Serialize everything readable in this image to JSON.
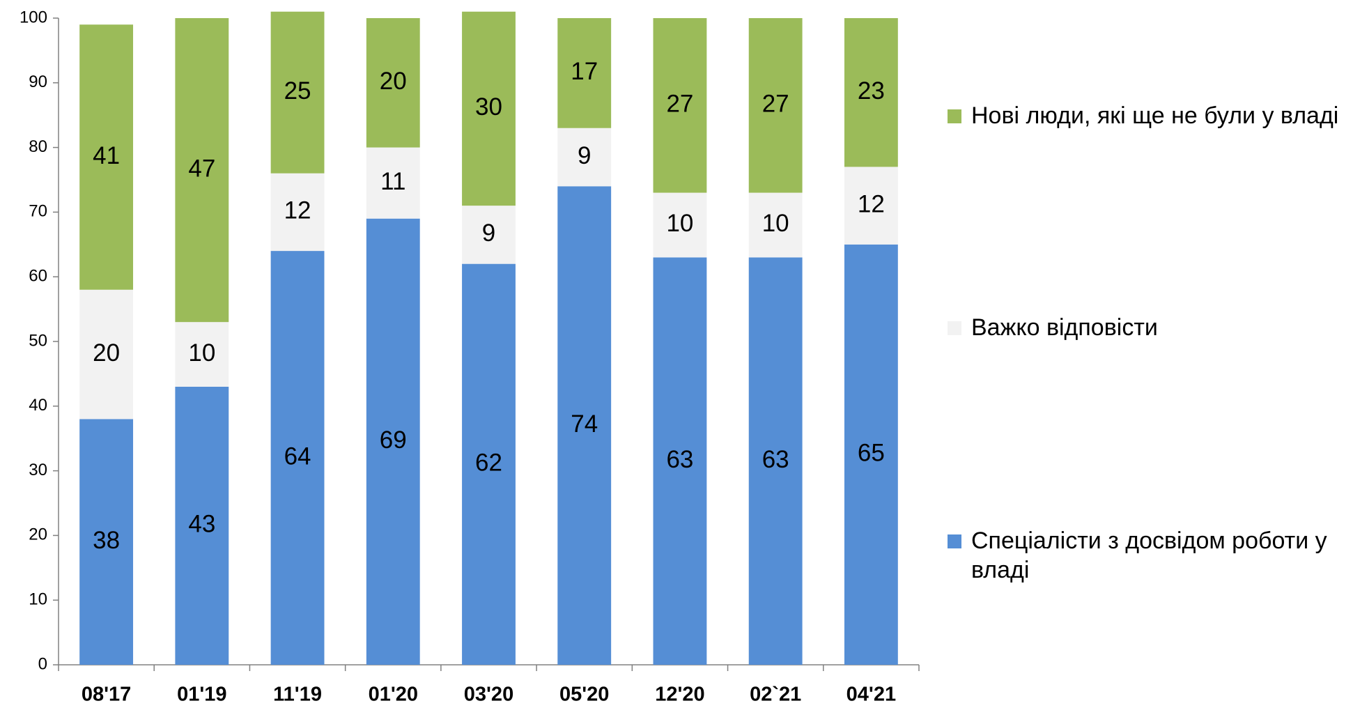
{
  "chart_data": {
    "type": "stacked_bar",
    "categories": [
      "08'17",
      "01'19",
      "11'19",
      "01'20",
      "03'20",
      "05'20",
      "12'20",
      "02`21",
      "04'21"
    ],
    "series": [
      {
        "name": "Спеціалісти з досвідом роботи у владі",
        "color": "#558ed5",
        "values": [
          38,
          43,
          64,
          69,
          62,
          74,
          63,
          63,
          65
        ]
      },
      {
        "name": "Важко відповісти",
        "color": "#f2f2f2",
        "values": [
          20,
          10,
          12,
          11,
          9,
          9,
          10,
          10,
          12
        ]
      },
      {
        "name": "Нові люди, які ще не були у владі",
        "color": "#9bbb59",
        "values": [
          41,
          47,
          25,
          20,
          30,
          17,
          27,
          27,
          23
        ]
      }
    ],
    "ylim": [
      0,
      100
    ],
    "yticks": [
      0,
      10,
      20,
      30,
      40,
      50,
      60,
      70,
      80,
      90,
      100
    ],
    "grid": false,
    "legend": "right"
  }
}
